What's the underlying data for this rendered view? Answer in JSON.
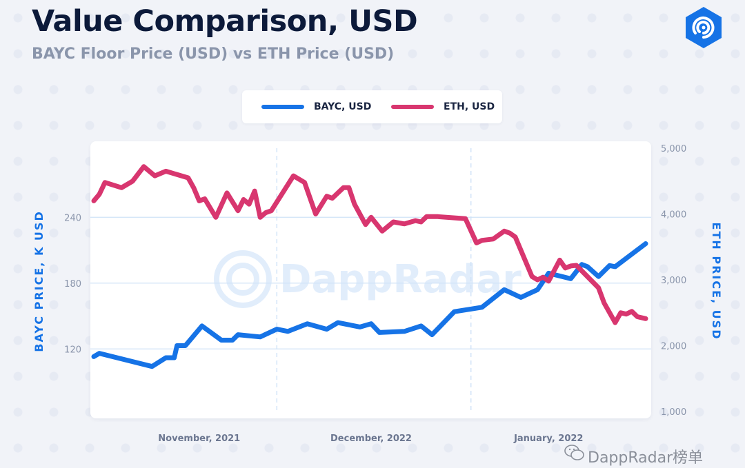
{
  "header": {
    "title": "Value Comparison, USD",
    "subtitle": "BAYC Floor Price (USD) vs ETH Price (USD)"
  },
  "watermark": {
    "center_text": "DappRadar",
    "corner_text": "DappRadar榜单"
  },
  "colors": {
    "bayc": "#1673e6",
    "eth": "#d8366f",
    "title": "#0c1a3a",
    "subtitle": "#8a95ab"
  },
  "icons": {
    "logo": "dappradar-logo-icon",
    "wechat": "wechat-icon"
  },
  "chart_data": {
    "type": "line",
    "title": "Value Comparison, USD",
    "subtitle": "BAYC Floor Price (USD) vs ETH Price (USD)",
    "legend": [
      "BAYC, USD",
      "ETH, USD"
    ],
    "legend_position": "top-center",
    "y_left": {
      "label": "BAYC PRICE, K USD",
      "range": [
        63,
        303
      ],
      "ticks": [
        120,
        180,
        240
      ]
    },
    "y_right": {
      "label": "ETH PRICE, USD",
      "range": [
        1000,
        5000
      ],
      "ticks": [
        "1,000",
        "2,000",
        "3,000",
        "4,000",
        "5,000"
      ],
      "tick_values": [
        1000,
        2000,
        3000,
        4000,
        5000
      ]
    },
    "x_range": [
      0,
      100
    ],
    "x_ticks": [
      {
        "label": "November, 2021",
        "pos": 19
      },
      {
        "label": "December, 2022",
        "pos": 50
      },
      {
        "label": "January, 2022",
        "pos": 82
      }
    ],
    "vertical_dividers": [
      33,
      68
    ],
    "grid": "horizontal",
    "series": [
      {
        "name": "BAYC, USD",
        "axis": "left",
        "color": "#1673e6",
        "x": [
          0,
          1,
          10.5,
          13,
          14.5,
          15,
          16.5,
          19.5,
          23,
          25,
          26,
          30,
          33,
          35,
          38.5,
          42,
          44,
          48,
          50,
          51.5,
          56,
          59,
          61,
          65,
          70,
          74,
          77,
          80,
          82,
          86,
          88,
          89,
          91,
          93,
          94,
          99.5
        ],
        "values": [
          113,
          116,
          104,
          112,
          112,
          123,
          123,
          141,
          128,
          128,
          133,
          131,
          138,
          136,
          143,
          138,
          144,
          140,
          143,
          135,
          136,
          141,
          133,
          154,
          158,
          174,
          167,
          174,
          189,
          184,
          197,
          195,
          186,
          196,
          195,
          216
        ]
      },
      {
        "name": "ETH, USD",
        "axis": "right",
        "color": "#d8366f",
        "x": [
          0,
          1,
          2,
          5,
          7,
          9,
          11,
          13,
          17,
          18,
          19,
          20,
          22,
          24,
          26,
          27,
          28,
          29,
          30,
          31,
          32,
          36,
          38,
          40,
          42,
          43,
          45,
          46,
          47,
          49,
          50,
          52,
          54,
          56,
          58,
          59,
          60,
          62,
          67,
          69,
          70,
          72,
          74,
          75,
          76,
          79,
          80,
          81,
          82,
          84,
          85,
          86,
          87,
          91,
          92,
          94,
          95,
          96,
          97,
          98,
          99.5
        ],
        "values": [
          4200,
          4300,
          4480,
          4400,
          4500,
          4720,
          4580,
          4650,
          4550,
          4400,
          4200,
          4230,
          3950,
          4320,
          4050,
          4220,
          4150,
          4350,
          3950,
          4020,
          4050,
          4580,
          4480,
          4000,
          4270,
          4240,
          4400,
          4400,
          4150,
          3840,
          3950,
          3740,
          3880,
          3850,
          3900,
          3880,
          3960,
          3960,
          3930,
          3560,
          3600,
          3620,
          3740,
          3710,
          3650,
          3050,
          3000,
          3040,
          2980,
          3300,
          3180,
          3210,
          3220,
          2880,
          2650,
          2350,
          2500,
          2480,
          2520,
          2440,
          2410
        ]
      }
    ]
  }
}
